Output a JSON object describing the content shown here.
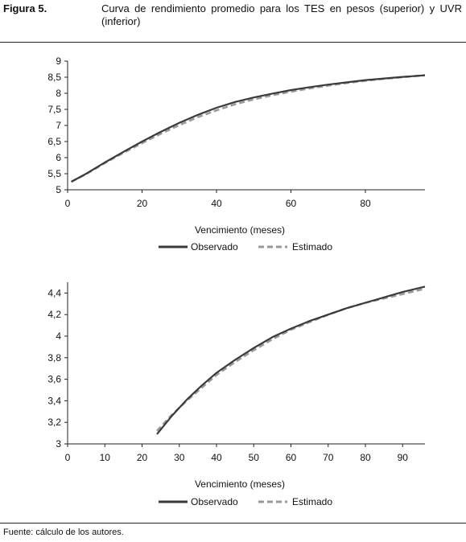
{
  "figure": {
    "label": "Figura 5.",
    "title": "Curva de rendimiento promedio para los TES en pesos (superior) y UVR (inferior)",
    "source": "Fuente: cálculo de los autores."
  },
  "colors": {
    "observado": "#3a3a3a",
    "estimado": "#9a9a9a",
    "axis": "#222222"
  },
  "chart_data": [
    {
      "type": "line",
      "title": "",
      "xlabel": "Vencimiento (meses)",
      "ylabel": "",
      "xlim": [
        0,
        96
      ],
      "ylim": [
        5,
        9
      ],
      "xticks": [
        0,
        20,
        40,
        60,
        80
      ],
      "yticks": [
        5,
        5.5,
        6,
        6.5,
        7,
        7.5,
        8,
        8.5,
        9
      ],
      "ytick_labels": [
        "5",
        "5,5",
        "6",
        "6,5",
        "7",
        "7,5",
        "8",
        "8,5",
        "9"
      ],
      "legend_position": "bottom-center",
      "x": [
        1,
        5,
        10,
        15,
        20,
        25,
        30,
        35,
        40,
        45,
        50,
        55,
        60,
        65,
        70,
        75,
        80,
        85,
        90,
        96
      ],
      "series": [
        {
          "name": "Observado",
          "style": "solid",
          "values": [
            5.25,
            5.5,
            5.85,
            6.18,
            6.5,
            6.8,
            7.08,
            7.33,
            7.55,
            7.73,
            7.87,
            7.99,
            8.1,
            8.19,
            8.27,
            8.34,
            8.41,
            8.46,
            8.51,
            8.56
          ]
        },
        {
          "name": "Estimado",
          "style": "dashed",
          "values": [
            5.25,
            5.49,
            5.83,
            6.15,
            6.45,
            6.74,
            7.01,
            7.26,
            7.47,
            7.66,
            7.81,
            7.94,
            8.05,
            8.15,
            8.24,
            8.32,
            8.39,
            8.45,
            8.5,
            8.56
          ]
        }
      ]
    },
    {
      "type": "line",
      "title": "",
      "xlabel": "Vencimiento (meses)",
      "ylabel": "",
      "xlim": [
        0,
        96
      ],
      "ylim": [
        3,
        4.5
      ],
      "xticks": [
        0,
        10,
        20,
        30,
        40,
        50,
        60,
        70,
        80,
        90
      ],
      "yticks": [
        3,
        3.2,
        3.4,
        3.6,
        3.8,
        4,
        4.2,
        4.4
      ],
      "ytick_labels": [
        "3",
        "3,2",
        "3,4",
        "3,6",
        "3,8",
        "4",
        "4,2",
        "4,4"
      ],
      "legend_position": "bottom-center",
      "x": [
        24,
        28,
        32,
        36,
        40,
        45,
        50,
        55,
        60,
        65,
        70,
        75,
        80,
        85,
        90,
        96
      ],
      "series": [
        {
          "name": "Observado",
          "style": "solid",
          "values": [
            3.09,
            3.26,
            3.41,
            3.54,
            3.66,
            3.78,
            3.89,
            3.99,
            4.07,
            4.14,
            4.2,
            4.26,
            4.31,
            4.36,
            4.41,
            4.46
          ]
        },
        {
          "name": "Estimado",
          "style": "dashed",
          "values": [
            3.12,
            3.27,
            3.4,
            3.52,
            3.64,
            3.76,
            3.87,
            3.97,
            4.06,
            4.13,
            4.2,
            4.26,
            4.31,
            4.35,
            4.39,
            4.44
          ]
        }
      ]
    }
  ]
}
